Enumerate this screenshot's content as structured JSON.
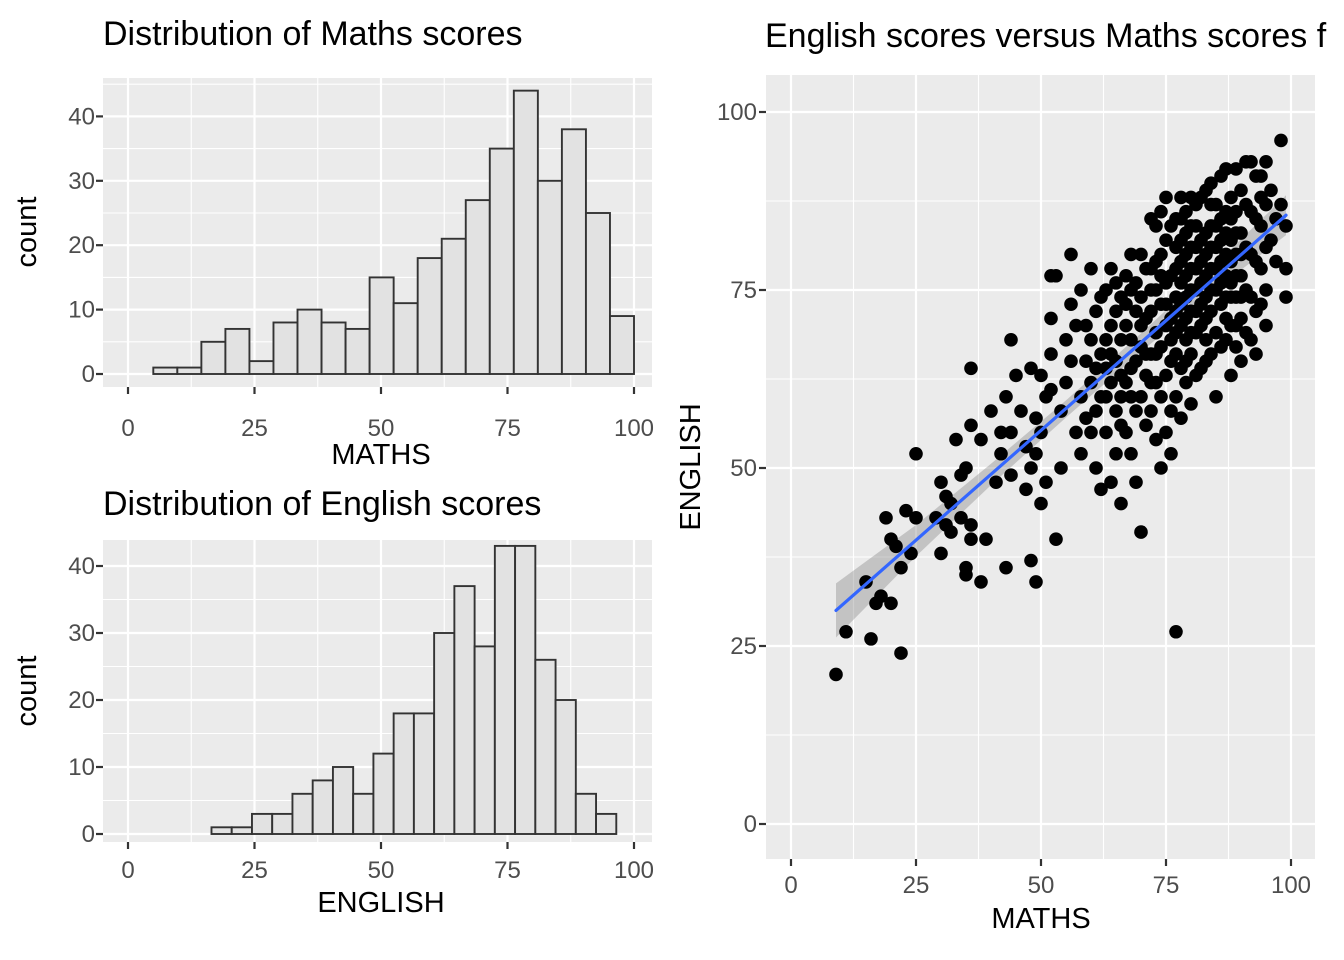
{
  "page": {
    "background": "#FFFFFF"
  },
  "styles": {
    "panel_bg": "#EBEBEB",
    "grid_color": "#FFFFFF",
    "bar_fill": "#E2E2E2",
    "bar_stroke": "#333333",
    "tick_label_color": "#4D4D4D",
    "title_color": "#000000",
    "point_color": "#000000",
    "smooth_line_color": "#3366FF",
    "band_color": "#8C8C8C"
  },
  "chart_data": [
    {
      "id": "maths_hist",
      "type": "bar",
      "title": "Distribution of Maths scores",
      "xlabel": "MATHS",
      "ylabel": "count",
      "x_ticks": [
        0,
        25,
        50,
        75,
        100
      ],
      "y_ticks": [
        0,
        10,
        20,
        30,
        40
      ],
      "x_minor": [
        12.5,
        37.5,
        62.5,
        87.5
      ],
      "y_minor": [
        5,
        15,
        25,
        35,
        45
      ],
      "xlim": [
        -5,
        103.5
      ],
      "ylim": [
        0,
        48.5
      ],
      "bin_start": 5,
      "bin_width": 4.75,
      "counts": [
        1,
        1,
        5,
        7,
        2,
        8,
        10,
        8,
        7,
        15,
        11,
        18,
        21,
        27,
        35,
        44,
        30,
        38,
        25,
        9
      ],
      "grid": true
    },
    {
      "id": "english_hist",
      "type": "bar",
      "title": "Distribution of English scores",
      "xlabel": "ENGLISH",
      "ylabel": "count",
      "x_ticks": [
        0,
        25,
        50,
        75,
        100
      ],
      "y_ticks": [
        0,
        10,
        20,
        30,
        40
      ],
      "x_minor": [
        12.5,
        37.5,
        62.5,
        87.5
      ],
      "y_minor": [
        5,
        15,
        25,
        35,
        45
      ],
      "xlim": [
        -5,
        103.5
      ],
      "ylim": [
        0,
        45
      ],
      "bin_start": 16.5,
      "bin_width": 4.0,
      "counts": [
        1,
        1,
        3,
        3,
        6,
        8,
        10,
        6,
        12,
        18,
        18,
        30,
        37,
        28,
        43,
        43,
        26,
        20,
        6,
        3
      ],
      "grid": true
    },
    {
      "id": "scatter",
      "type": "scatter",
      "title": "English scores versus Maths scores f",
      "xlabel": "MATHS",
      "ylabel": "ENGLISH",
      "x_ticks": [
        0,
        25,
        50,
        75,
        100
      ],
      "y_ticks": [
        0,
        25,
        50,
        75,
        100
      ],
      "x_minor": [
        12.5,
        37.5,
        62.5,
        87.5
      ],
      "y_minor": [
        12.5,
        37.5,
        62.5,
        87.5
      ],
      "xlim": [
        -5,
        104.8
      ],
      "ylim": [
        -5,
        105.2
      ],
      "grid": true,
      "legend": "none",
      "smooth": {
        "line": [
          [
            9,
            30
          ],
          [
            99,
            85.5
          ]
        ],
        "band": {
          "x": [
            9,
            25,
            40,
            55,
            70,
            85,
            99
          ],
          "upper": [
            33.8,
            42.0,
            50.6,
            59.5,
            68.9,
            78.7,
            88.3
          ],
          "lower": [
            26.2,
            37.6,
            47.6,
            57.1,
            66.3,
            75.1,
            82.7
          ]
        }
      },
      "points": [
        [
          9,
          21
        ],
        [
          11,
          27
        ],
        [
          15,
          34
        ],
        [
          16,
          26
        ],
        [
          17,
          31
        ],
        [
          18,
          32
        ],
        [
          19,
          43
        ],
        [
          20,
          40
        ],
        [
          20,
          31
        ],
        [
          21,
          39
        ],
        [
          22,
          24
        ],
        [
          22,
          36
        ],
        [
          23,
          44
        ],
        [
          24,
          38
        ],
        [
          25,
          43
        ],
        [
          25,
          52
        ],
        [
          29,
          43
        ],
        [
          30,
          48
        ],
        [
          30,
          38
        ],
        [
          31,
          46
        ],
        [
          31,
          42
        ],
        [
          32,
          45
        ],
        [
          32,
          41
        ],
        [
          33,
          54
        ],
        [
          34,
          49
        ],
        [
          34,
          43
        ],
        [
          35,
          50
        ],
        [
          35,
          36
        ],
        [
          35,
          35
        ],
        [
          36,
          42
        ],
        [
          36,
          40
        ],
        [
          36,
          56
        ],
        [
          36,
          64
        ],
        [
          38,
          54
        ],
        [
          38,
          34
        ],
        [
          39,
          40
        ],
        [
          40,
          58
        ],
        [
          41,
          48
        ],
        [
          42,
          52
        ],
        [
          42,
          55
        ],
        [
          43,
          60
        ],
        [
          43,
          36
        ],
        [
          44,
          55
        ],
        [
          44,
          49
        ],
        [
          44,
          68
        ],
        [
          45,
          63
        ],
        [
          46,
          58
        ],
        [
          47,
          53
        ],
        [
          47,
          47
        ],
        [
          48,
          64
        ],
        [
          48,
          37
        ],
        [
          48,
          50
        ],
        [
          49,
          57
        ],
        [
          49,
          34
        ],
        [
          49,
          52
        ],
        [
          50,
          63
        ],
        [
          50,
          55
        ],
        [
          50,
          45
        ],
        [
          51,
          60
        ],
        [
          51,
          48
        ],
        [
          52,
          61
        ],
        [
          52,
          71
        ],
        [
          52,
          66
        ],
        [
          52,
          77
        ],
        [
          53,
          40
        ],
        [
          53,
          77
        ],
        [
          54,
          58
        ],
        [
          54,
          50
        ],
        [
          55,
          62
        ],
        [
          55,
          68
        ],
        [
          56,
          80
        ],
        [
          56,
          65
        ],
        [
          56,
          73
        ],
        [
          57,
          55
        ],
        [
          57,
          70
        ],
        [
          58,
          75
        ],
        [
          58,
          60
        ],
        [
          58,
          52
        ],
        [
          59,
          65
        ],
        [
          59,
          70
        ],
        [
          59,
          57
        ],
        [
          60,
          78
        ],
        [
          60,
          62
        ],
        [
          60,
          68
        ],
        [
          60,
          55
        ],
        [
          61,
          72
        ],
        [
          61,
          64
        ],
        [
          61,
          58
        ],
        [
          61,
          50
        ],
        [
          62,
          66
        ],
        [
          62,
          60
        ],
        [
          62,
          74
        ],
        [
          62,
          47
        ],
        [
          63,
          68
        ],
        [
          63,
          60
        ],
        [
          63,
          75
        ],
        [
          63,
          55
        ],
        [
          63,
          64
        ],
        [
          64,
          70
        ],
        [
          64,
          62
        ],
        [
          64,
          48
        ],
        [
          64,
          78
        ],
        [
          64,
          66
        ],
        [
          65,
          65
        ],
        [
          65,
          72
        ],
        [
          65,
          58
        ],
        [
          65,
          52
        ],
        [
          65,
          76
        ],
        [
          66,
          68
        ],
        [
          66,
          74
        ],
        [
          66,
          60
        ],
        [
          66,
          45
        ],
        [
          66,
          63
        ],
        [
          66,
          56
        ],
        [
          67,
          77
        ],
        [
          67,
          70
        ],
        [
          67,
          62
        ],
        [
          67,
          55
        ],
        [
          67,
          73
        ],
        [
          68,
          75
        ],
        [
          68,
          68
        ],
        [
          68,
          60
        ],
        [
          68,
          52
        ],
        [
          68,
          64
        ],
        [
          68,
          80
        ],
        [
          69,
          76
        ],
        [
          69,
          72
        ],
        [
          69,
          65
        ],
        [
          69,
          58
        ],
        [
          69,
          48
        ],
        [
          70,
          80
        ],
        [
          70,
          74
        ],
        [
          70,
          67
        ],
        [
          70,
          60
        ],
        [
          70,
          41
        ],
        [
          70,
          70
        ],
        [
          71,
          78
        ],
        [
          71,
          71
        ],
        [
          71,
          63
        ],
        [
          71,
          56
        ],
        [
          71,
          66
        ],
        [
          72,
          85
        ],
        [
          72,
          78
        ],
        [
          72,
          72
        ],
        [
          72,
          66
        ],
        [
          72,
          58
        ],
        [
          72,
          62
        ],
        [
          72,
          75
        ],
        [
          73,
          84
        ],
        [
          73,
          75
        ],
        [
          73,
          69
        ],
        [
          73,
          62
        ],
        [
          73,
          54
        ],
        [
          73,
          79
        ],
        [
          73,
          66
        ],
        [
          74,
          86
        ],
        [
          74,
          80
        ],
        [
          74,
          73
        ],
        [
          74,
          67
        ],
        [
          74,
          60
        ],
        [
          74,
          50
        ],
        [
          74,
          77
        ],
        [
          75,
          88
        ],
        [
          75,
          82
        ],
        [
          75,
          76
        ],
        [
          75,
          70
        ],
        [
          75,
          63
        ],
        [
          75,
          55
        ],
        [
          75,
          73
        ],
        [
          76,
          84
        ],
        [
          76,
          77
        ],
        [
          76,
          71
        ],
        [
          76,
          65
        ],
        [
          76,
          58
        ],
        [
          76,
          68
        ],
        [
          76,
          52
        ],
        [
          77,
          27
        ],
        [
          77,
          85
        ],
        [
          77,
          78
        ],
        [
          77,
          72
        ],
        [
          77,
          66
        ],
        [
          77,
          60
        ],
        [
          77,
          74
        ],
        [
          77,
          81
        ],
        [
          77,
          69
        ],
        [
          78,
          88
        ],
        [
          78,
          82
        ],
        [
          78,
          76
        ],
        [
          78,
          70
        ],
        [
          78,
          64
        ],
        [
          78,
          57
        ],
        [
          78,
          79
        ],
        [
          78,
          73
        ],
        [
          78,
          85
        ],
        [
          79,
          86
        ],
        [
          79,
          80
        ],
        [
          79,
          74
        ],
        [
          79,
          68
        ],
        [
          79,
          62
        ],
        [
          79,
          71
        ],
        [
          79,
          77
        ],
        [
          79,
          65
        ],
        [
          79,
          83
        ],
        [
          80,
          88
        ],
        [
          80,
          84
        ],
        [
          80,
          78
        ],
        [
          80,
          72
        ],
        [
          80,
          66
        ],
        [
          80,
          59
        ],
        [
          80,
          75
        ],
        [
          80,
          81
        ],
        [
          80,
          69
        ],
        [
          81,
          87
        ],
        [
          81,
          81
        ],
        [
          81,
          75
        ],
        [
          81,
          69
        ],
        [
          81,
          63
        ],
        [
          81,
          78
        ],
        [
          81,
          72
        ],
        [
          81,
          84
        ],
        [
          82,
          88
        ],
        [
          82,
          82
        ],
        [
          82,
          76
        ],
        [
          82,
          70
        ],
        [
          82,
          64
        ],
        [
          82,
          79
        ],
        [
          82,
          73
        ],
        [
          83,
          89
        ],
        [
          83,
          83
        ],
        [
          83,
          77
        ],
        [
          83,
          71
        ],
        [
          83,
          65
        ],
        [
          83,
          74
        ],
        [
          83,
          80
        ],
        [
          83,
          68
        ],
        [
          84,
          90
        ],
        [
          84,
          84
        ],
        [
          84,
          78
        ],
        [
          84,
          72
        ],
        [
          84,
          66
        ],
        [
          84,
          81
        ],
        [
          84,
          75
        ],
        [
          84,
          87
        ],
        [
          85,
          87
        ],
        [
          85,
          81
        ],
        [
          85,
          75
        ],
        [
          85,
          69
        ],
        [
          85,
          60
        ],
        [
          85,
          78
        ],
        [
          85,
          84
        ],
        [
          86,
          91
        ],
        [
          86,
          85
        ],
        [
          86,
          79
        ],
        [
          86,
          73
        ],
        [
          86,
          67
        ],
        [
          86,
          82
        ],
        [
          86,
          76
        ],
        [
          87,
          92
        ],
        [
          87,
          86
        ],
        [
          87,
          80
        ],
        [
          87,
          74
        ],
        [
          87,
          68
        ],
        [
          87,
          77
        ],
        [
          87,
          83
        ],
        [
          87,
          71
        ],
        [
          88,
          88
        ],
        [
          88,
          82
        ],
        [
          88,
          76
        ],
        [
          88,
          70
        ],
        [
          88,
          63
        ],
        [
          88,
          85
        ],
        [
          88,
          79
        ],
        [
          88,
          74
        ],
        [
          89,
          92
        ],
        [
          89,
          86
        ],
        [
          89,
          80
        ],
        [
          89,
          74
        ],
        [
          89,
          67
        ],
        [
          89,
          77
        ],
        [
          89,
          83
        ],
        [
          89,
          70
        ],
        [
          90,
          89
        ],
        [
          90,
          83
        ],
        [
          90,
          77
        ],
        [
          90,
          71
        ],
        [
          90,
          65
        ],
        [
          90,
          80
        ],
        [
          90,
          74
        ],
        [
          91,
          93
        ],
        [
          91,
          87
        ],
        [
          91,
          81
        ],
        [
          91,
          75
        ],
        [
          91,
          69
        ],
        [
          92,
          93
        ],
        [
          92,
          86
        ],
        [
          92,
          80
        ],
        [
          92,
          74
        ],
        [
          92,
          68
        ],
        [
          93,
          91
        ],
        [
          93,
          85
        ],
        [
          93,
          79
        ],
        [
          93,
          72
        ],
        [
          93,
          66
        ],
        [
          94,
          91
        ],
        [
          94,
          84
        ],
        [
          94,
          78
        ],
        [
          94,
          88
        ],
        [
          94,
          73
        ],
        [
          95,
          93
        ],
        [
          95,
          87
        ],
        [
          95,
          81
        ],
        [
          95,
          75
        ],
        [
          95,
          70
        ],
        [
          96,
          89
        ],
        [
          96,
          82
        ],
        [
          97,
          85
        ],
        [
          97,
          79
        ],
        [
          98,
          96
        ],
        [
          98,
          87
        ],
        [
          99,
          84
        ],
        [
          99,
          78
        ],
        [
          99,
          74
        ]
      ]
    }
  ]
}
